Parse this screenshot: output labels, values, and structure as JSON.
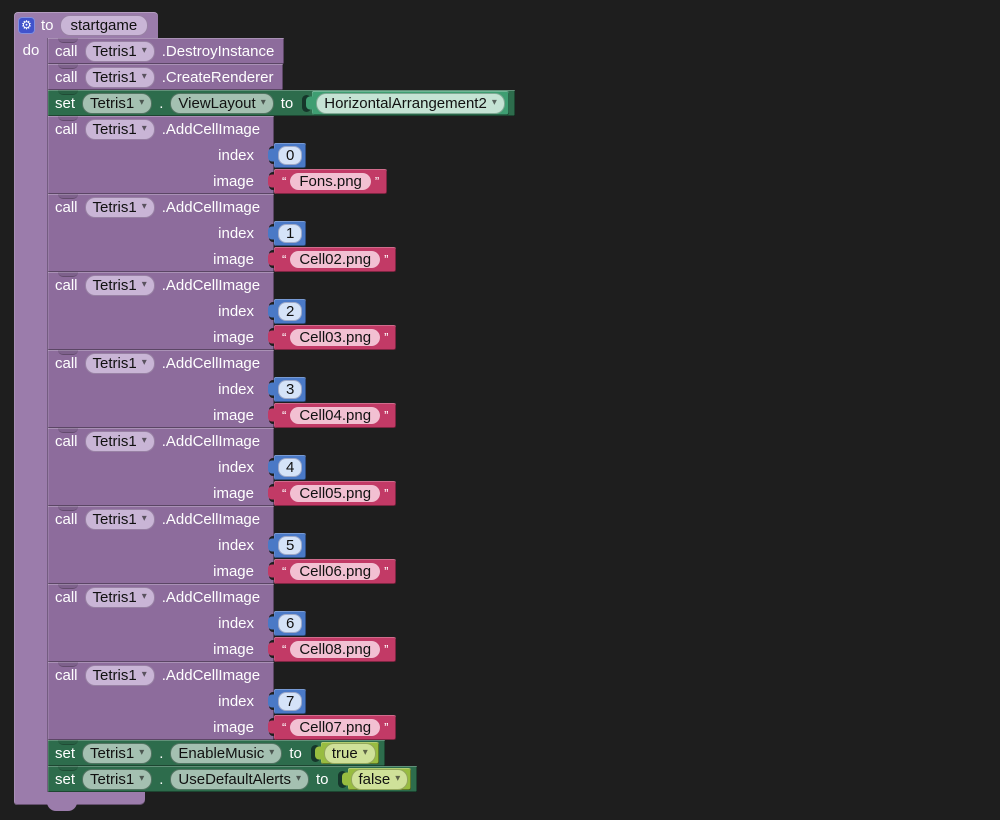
{
  "glyphs": {
    "gear": "⚙",
    "dropdown_arrow": "▾",
    "quote_open": "“",
    "quote_close": "”"
  },
  "colors": {
    "workspace_bg": "#1e1e1e",
    "procedure": "#9b7cab",
    "call_block": "#8d6c9c",
    "field_purple": "#c9b5d6",
    "set_block": "#2d6c4c",
    "set_field": "#a4c0b1",
    "component_getter": "#3f9e72",
    "component_getter_field": "#c5e3d4",
    "boolean_block": "#98bc40",
    "boolean_field": "#cfe199",
    "number_block": "#4a79c6",
    "number_field": "#d5e3f8",
    "string_block": "#c23a66",
    "string_field": "#f2c0d2",
    "gear_badge": "#4153cc"
  },
  "procedure": {
    "to_label": "to",
    "name": "startgame",
    "do_label": "do"
  },
  "statements": [
    {
      "type": "call",
      "keyword": "call",
      "component": "Tetris1",
      "method": ".DestroyInstance"
    },
    {
      "type": "call",
      "keyword": "call",
      "component": "Tetris1",
      "method": ".CreateRenderer"
    },
    {
      "type": "set",
      "keyword": "set",
      "component": "Tetris1",
      "dot": ".",
      "property": "ViewLayout",
      "to_label": "to",
      "value": {
        "kind": "component_get",
        "label": "HorizontalArrangement2"
      }
    },
    {
      "type": "call_with_args",
      "keyword": "call",
      "component": "Tetris1",
      "method": ".AddCellImage",
      "args": [
        {
          "name": "index",
          "value": {
            "kind": "number",
            "text": "0"
          }
        },
        {
          "name": "image",
          "value": {
            "kind": "string",
            "text": "Fons.png"
          }
        }
      ]
    },
    {
      "type": "call_with_args",
      "keyword": "call",
      "component": "Tetris1",
      "method": ".AddCellImage",
      "args": [
        {
          "name": "index",
          "value": {
            "kind": "number",
            "text": "1"
          }
        },
        {
          "name": "image",
          "value": {
            "kind": "string",
            "text": "Cell02.png"
          }
        }
      ]
    },
    {
      "type": "call_with_args",
      "keyword": "call",
      "component": "Tetris1",
      "method": ".AddCellImage",
      "args": [
        {
          "name": "index",
          "value": {
            "kind": "number",
            "text": "2"
          }
        },
        {
          "name": "image",
          "value": {
            "kind": "string",
            "text": "Cell03.png"
          }
        }
      ]
    },
    {
      "type": "call_with_args",
      "keyword": "call",
      "component": "Tetris1",
      "method": ".AddCellImage",
      "args": [
        {
          "name": "index",
          "value": {
            "kind": "number",
            "text": "3"
          }
        },
        {
          "name": "image",
          "value": {
            "kind": "string",
            "text": "Cell04.png"
          }
        }
      ]
    },
    {
      "type": "call_with_args",
      "keyword": "call",
      "component": "Tetris1",
      "method": ".AddCellImage",
      "args": [
        {
          "name": "index",
          "value": {
            "kind": "number",
            "text": "4"
          }
        },
        {
          "name": "image",
          "value": {
            "kind": "string",
            "text": "Cell05.png"
          }
        }
      ]
    },
    {
      "type": "call_with_args",
      "keyword": "call",
      "component": "Tetris1",
      "method": ".AddCellImage",
      "args": [
        {
          "name": "index",
          "value": {
            "kind": "number",
            "text": "5"
          }
        },
        {
          "name": "image",
          "value": {
            "kind": "string",
            "text": "Cell06.png"
          }
        }
      ]
    },
    {
      "type": "call_with_args",
      "keyword": "call",
      "component": "Tetris1",
      "method": ".AddCellImage",
      "args": [
        {
          "name": "index",
          "value": {
            "kind": "number",
            "text": "6"
          }
        },
        {
          "name": "image",
          "value": {
            "kind": "string",
            "text": "Cell08.png"
          }
        }
      ]
    },
    {
      "type": "call_with_args",
      "keyword": "call",
      "component": "Tetris1",
      "method": ".AddCellImage",
      "args": [
        {
          "name": "index",
          "value": {
            "kind": "number",
            "text": "7"
          }
        },
        {
          "name": "image",
          "value": {
            "kind": "string",
            "text": "Cell07.png"
          }
        }
      ]
    },
    {
      "type": "set",
      "keyword": "set",
      "component": "Tetris1",
      "dot": ".",
      "property": "EnableMusic",
      "to_label": "to",
      "value": {
        "kind": "boolean",
        "label": "true"
      }
    },
    {
      "type": "set",
      "keyword": "set",
      "component": "Tetris1",
      "dot": ".",
      "property": "UseDefaultAlerts",
      "to_label": "to",
      "value": {
        "kind": "boolean",
        "label": "false"
      }
    }
  ]
}
